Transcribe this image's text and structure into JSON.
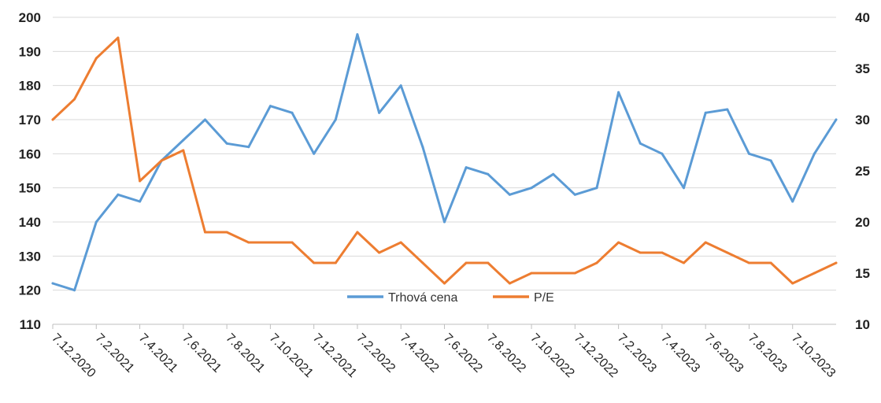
{
  "chart_data": {
    "type": "line",
    "x": [
      "7.12.2020",
      "7.1.2021",
      "7.2.2021",
      "7.3.2021",
      "7.4.2021",
      "7.5.2021",
      "7.6.2021",
      "7.7.2021",
      "7.8.2021",
      "7.9.2021",
      "7.10.2021",
      "7.11.2021",
      "7.12.2021",
      "7.1.2022",
      "7.2.2022",
      "7.3.2022",
      "7.4.2022",
      "7.5.2022",
      "7.6.2022",
      "7.7.2022",
      "7.8.2022",
      "7.9.2022",
      "7.10.2022",
      "7.11.2022",
      "7.12.2022",
      "7.1.2023",
      "7.2.2023",
      "7.3.2023",
      "7.4.2023",
      "7.5.2023",
      "7.6.2023",
      "7.7.2023",
      "7.8.2023",
      "7.9.2023",
      "7.10.2023",
      "7.11.2023",
      "7.12.2023"
    ],
    "x_tick_labels": [
      "7.12.2020",
      "7.2.2021",
      "7.4.2021",
      "7.6.2021",
      "7.8.2021",
      "7.10.2021",
      "7.12.2021",
      "7.2.2022",
      "7.4.2022",
      "7.6.2022",
      "7.8.2022",
      "7.10.2022",
      "7.12.2022",
      "7.2.2023",
      "7.4.2023",
      "7.6.2023",
      "7.8.2023",
      "7.10.2023"
    ],
    "series": [
      {
        "name": "Trhová cena",
        "axis": "left",
        "color": "#5B9BD5",
        "values": [
          122,
          120,
          140,
          148,
          146,
          158,
          164,
          170,
          163,
          162,
          174,
          172,
          160,
          170,
          195,
          172,
          180,
          162,
          140,
          156,
          154,
          148,
          150,
          154,
          148,
          150,
          178,
          163,
          160,
          150,
          172,
          173,
          160,
          158,
          146,
          160,
          170
        ]
      },
      {
        "name": "P/E",
        "axis": "right",
        "color": "#ED7D31",
        "values": [
          30,
          32,
          36,
          38,
          24,
          26,
          27,
          19,
          19,
          18,
          18,
          18,
          16,
          16,
          19,
          17,
          18,
          16,
          14,
          16,
          16,
          14,
          15,
          15,
          15,
          16,
          18,
          17,
          17,
          16,
          18,
          17,
          16,
          16,
          14,
          15,
          16
        ]
      }
    ],
    "y_left": {
      "min": 110,
      "max": 200,
      "step": 10,
      "ticks": [
        "110",
        "120",
        "130",
        "140",
        "150",
        "160",
        "170",
        "180",
        "190",
        "200"
      ]
    },
    "y_right": {
      "min": 10,
      "max": 40,
      "step": 5,
      "ticks": [
        "10",
        "15",
        "20",
        "25",
        "30",
        "35",
        "40"
      ]
    },
    "grid": "horizontal",
    "legend": "bottom-center",
    "title": "",
    "xlabel": "",
    "ylabel": ""
  }
}
